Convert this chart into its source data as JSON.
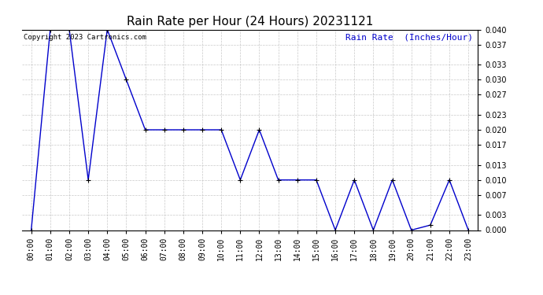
{
  "title": "Rain Rate per Hour (24 Hours) 20231121",
  "copyright_text": "Copyright 2023 Cartronics.com",
  "legend_label": "Rain Rate  (Inches/Hour)",
  "line_color": "#0000cc",
  "legend_color": "#0000cc",
  "copyright_color": "#000000",
  "background_color": "#ffffff",
  "grid_color": "#bbbbbb",
  "hours": [
    0,
    1,
    2,
    3,
    4,
    5,
    6,
    7,
    8,
    9,
    10,
    11,
    12,
    13,
    14,
    15,
    16,
    17,
    18,
    19,
    20,
    21,
    22,
    23
  ],
  "values": [
    0.0,
    0.04,
    0.04,
    0.01,
    0.04,
    0.03,
    0.02,
    0.02,
    0.02,
    0.02,
    0.02,
    0.01,
    0.02,
    0.01,
    0.01,
    0.01,
    0.0,
    0.01,
    0.0,
    0.01,
    0.0,
    0.001,
    0.01,
    0.0
  ],
  "ylim": [
    0.0,
    0.04
  ],
  "yticks": [
    0.0,
    0.003,
    0.007,
    0.01,
    0.013,
    0.017,
    0.02,
    0.023,
    0.027,
    0.03,
    0.033,
    0.037,
    0.04
  ],
  "title_fontsize": 11,
  "tick_fontsize": 7,
  "legend_fontsize": 8,
  "copyright_fontsize": 6.5,
  "fig_width": 6.9,
  "fig_height": 3.75,
  "dpi": 100
}
